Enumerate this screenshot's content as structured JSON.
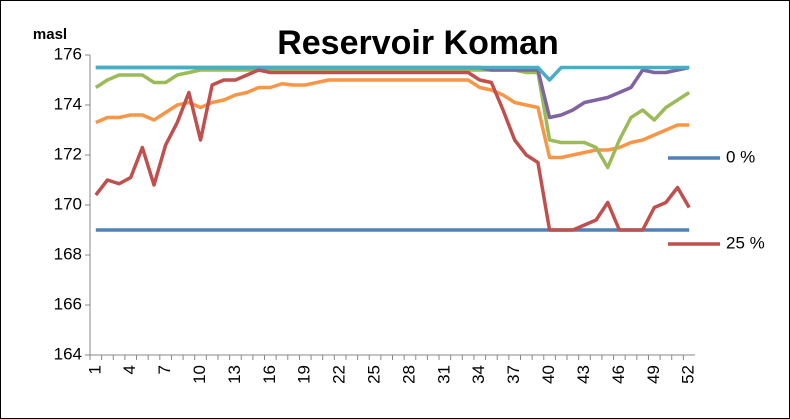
{
  "chart_data": {
    "type": "line",
    "title": "Reservoir Koman",
    "y_label": "masl",
    "categories": [
      1,
      null,
      null,
      4,
      null,
      null,
      7,
      null,
      null,
      10,
      null,
      null,
      13,
      null,
      null,
      16,
      null,
      null,
      19,
      null,
      null,
      22,
      null,
      null,
      25,
      null,
      null,
      28,
      null,
      null,
      31,
      null,
      null,
      34,
      null,
      null,
      37,
      null,
      null,
      40,
      null,
      null,
      43,
      null,
      null,
      46,
      null,
      null,
      49,
      null,
      null,
      52
    ],
    "ylim": [
      164,
      176
    ],
    "yticks": [
      164,
      166,
      168,
      170,
      172,
      174,
      176
    ],
    "grid": false,
    "legend": "right",
    "series": [
      {
        "name": "0 %",
        "color": "#4f81bd",
        "values": [
          169,
          169,
          169,
          169,
          169,
          169,
          169,
          169,
          169,
          169,
          169,
          169,
          169,
          169,
          169,
          169,
          169,
          169,
          169,
          169,
          169,
          169,
          169,
          169,
          169,
          169,
          169,
          169,
          169,
          169,
          169,
          169,
          169,
          169,
          169,
          169,
          169,
          169,
          169,
          169,
          169,
          169,
          169,
          169,
          169,
          169,
          169,
          169,
          169,
          169,
          169,
          169
        ]
      },
      {
        "color": "#f79646",
        "values": [
          173.3,
          173.5,
          173.5,
          173.6,
          173.6,
          173.4,
          173.7,
          174.0,
          174.1,
          173.9,
          174.1,
          174.2,
          174.4,
          174.5,
          174.7,
          174.7,
          174.85,
          174.8,
          174.8,
          174.9,
          175.0,
          175.0,
          175.0,
          175.0,
          175.0,
          175.0,
          175.0,
          175.0,
          175.0,
          175.0,
          175.0,
          175.0,
          175.0,
          174.7,
          174.6,
          174.4,
          174.1,
          174.0,
          173.9,
          171.9,
          171.9,
          172.0,
          172.1,
          172.2,
          172.2,
          172.3,
          172.5,
          172.6,
          172.8,
          173.0,
          173.2,
          173.2
        ]
      },
      {
        "color": "#9bbb59",
        "values": [
          174.7,
          175.0,
          175.2,
          175.2,
          175.2,
          174.9,
          174.9,
          175.2,
          175.3,
          175.4,
          175.4,
          175.4,
          175.4,
          175.4,
          175.4,
          175.4,
          175.4,
          175.4,
          175.4,
          175.4,
          175.4,
          175.4,
          175.4,
          175.4,
          175.4,
          175.4,
          175.4,
          175.4,
          175.4,
          175.4,
          175.4,
          175.4,
          175.4,
          175.4,
          175.4,
          175.4,
          175.4,
          175.3,
          175.3,
          172.6,
          172.5,
          172.5,
          172.5,
          172.3,
          171.5,
          172.6,
          173.5,
          173.8,
          173.4,
          173.9,
          174.2,
          174.5
        ]
      },
      {
        "color": "#8064a2",
        "values": [
          175.5,
          175.5,
          175.5,
          175.5,
          175.5,
          175.5,
          175.5,
          175.5,
          175.5,
          175.5,
          175.5,
          175.5,
          175.5,
          175.5,
          175.5,
          175.5,
          175.5,
          175.5,
          175.5,
          175.5,
          175.5,
          175.5,
          175.5,
          175.5,
          175.5,
          175.5,
          175.5,
          175.5,
          175.5,
          175.5,
          175.5,
          175.5,
          175.5,
          175.5,
          175.4,
          175.4,
          175.4,
          175.4,
          175.4,
          173.5,
          173.6,
          173.8,
          174.1,
          174.2,
          174.3,
          174.5,
          174.7,
          175.4,
          175.3,
          175.3,
          175.4,
          175.5
        ]
      },
      {
        "color": "#4bacc6",
        "values": [
          175.5,
          175.5,
          175.5,
          175.5,
          175.5,
          175.5,
          175.5,
          175.5,
          175.5,
          175.5,
          175.5,
          175.5,
          175.5,
          175.5,
          175.5,
          175.5,
          175.5,
          175.5,
          175.5,
          175.5,
          175.5,
          175.5,
          175.5,
          175.5,
          175.5,
          175.5,
          175.5,
          175.5,
          175.5,
          175.5,
          175.5,
          175.5,
          175.5,
          175.5,
          175.5,
          175.5,
          175.5,
          175.5,
          175.5,
          175.0,
          175.5,
          175.5,
          175.5,
          175.5,
          175.5,
          175.5,
          175.5,
          175.5,
          175.5,
          175.5,
          175.5,
          175.5
        ]
      },
      {
        "name": "25 %",
        "color": "#c0504d",
        "values": [
          170.4,
          171.0,
          170.85,
          171.1,
          172.3,
          170.8,
          172.4,
          173.3,
          174.5,
          172.6,
          174.8,
          175.0,
          175.0,
          175.2,
          175.4,
          175.3,
          175.3,
          175.3,
          175.3,
          175.3,
          175.3,
          175.3,
          175.3,
          175.3,
          175.3,
          175.3,
          175.3,
          175.3,
          175.3,
          175.3,
          175.3,
          175.3,
          175.3,
          175.0,
          174.9,
          173.8,
          172.6,
          172.0,
          171.7,
          169.0,
          169.0,
          169.0,
          169.2,
          169.4,
          170.1,
          169.0,
          169.0,
          169.0,
          169.9,
          170.1,
          170.7,
          169.9
        ]
      }
    ]
  }
}
